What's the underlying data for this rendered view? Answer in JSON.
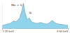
{
  "chart_data": {
    "type": "area",
    "x": [
      1.2,
      1.3,
      1.4,
      1.5,
      1.6,
      1.7,
      1.8,
      1.9,
      2.0,
      2.1,
      2.2,
      2.3,
      2.4,
      2.5,
      2.6,
      2.7,
      2.8,
      2.9,
      3.0,
      3.1,
      3.2,
      3.3,
      3.4,
      3.5,
      3.6,
      3.7,
      3.8,
      3.9,
      4.0,
      4.1,
      4.2,
      4.3,
      4.4,
      4.5,
      4.6
    ],
    "values": [
      10,
      12,
      14,
      16,
      18,
      22,
      28,
      24,
      30,
      38,
      60,
      95,
      55,
      32,
      40,
      26,
      22,
      20,
      18,
      20,
      22,
      19,
      17,
      16,
      18,
      24,
      30,
      22,
      18,
      16,
      15,
      14,
      13,
      12,
      11
    ],
    "color": "#8fd3ec",
    "xlim": [
      1.2,
      4.6
    ],
    "xticks": [
      {
        "value": 1.2,
        "label": "1.20 keV"
      },
      {
        "value": 4.6,
        "label": "4.60 keV"
      }
    ],
    "ylim": [
      0,
      100
    ],
    "tick_labels": "x",
    "annotations": [
      {
        "text": "Mo + S",
        "x": 1.95,
        "y": 85
      },
      {
        "text": "Si",
        "x": 2.65,
        "y": 55
      }
    ]
  }
}
